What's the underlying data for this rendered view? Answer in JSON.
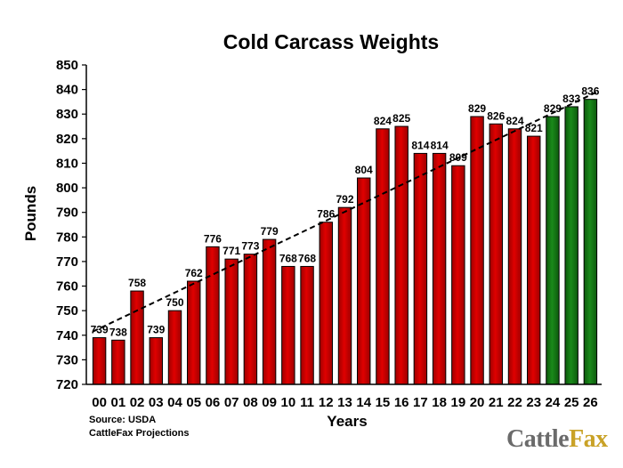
{
  "chart_data": {
    "type": "bar",
    "title": "Cold Carcass Weights",
    "xlabel": "Years",
    "ylabel": "Pounds",
    "ylim": [
      720,
      850
    ],
    "yticks": [
      720,
      730,
      740,
      750,
      760,
      770,
      780,
      790,
      800,
      810,
      820,
      830,
      840,
      850
    ],
    "grid": false,
    "categories": [
      "00",
      "01",
      "02",
      "03",
      "04",
      "05",
      "06",
      "07",
      "08",
      "09",
      "10",
      "11",
      "12",
      "13",
      "14",
      "15",
      "16",
      "17",
      "18",
      "19",
      "20",
      "21",
      "22",
      "23",
      "24",
      "25",
      "26"
    ],
    "values": [
      739,
      738,
      758,
      739,
      750,
      762,
      776,
      771,
      773,
      779,
      768,
      768,
      786,
      792,
      804,
      824,
      825,
      814,
      814,
      809,
      829,
      826,
      824,
      821,
      829,
      833,
      836
    ],
    "bar_colors": {
      "actual": "#e00000",
      "projection": "#1a8a1a"
    },
    "projection_start_index": 24,
    "trendline": {
      "style": "dashed",
      "from": [
        0,
        741.5
      ],
      "to": [
        26,
        839
      ]
    }
  },
  "notes": {
    "source": "Source: USDA",
    "projections": "CattleFax Projections"
  },
  "logo": {
    "text_part1": "Cattle",
    "text_part2": "Fax"
  }
}
